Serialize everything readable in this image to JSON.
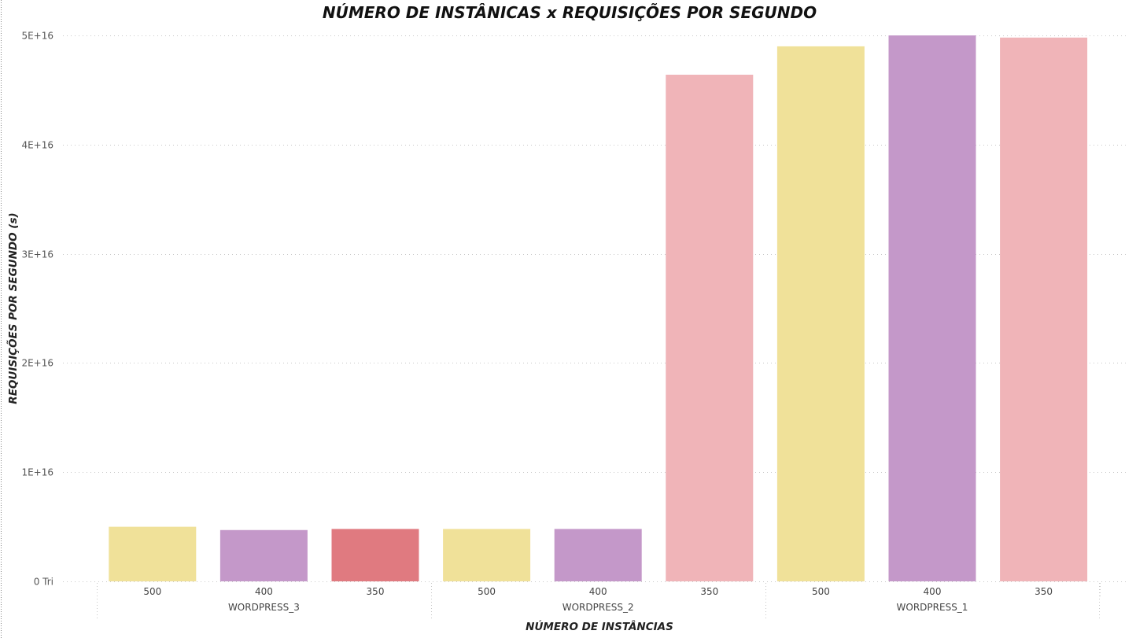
{
  "colors": {
    "bar_yellow": "#F0E199",
    "bar_purple": "#C498C9",
    "bar_red": "#E07A80",
    "bar_pink": "#F0B4B8",
    "gridline": "#C8C8C8"
  },
  "chart_data": {
    "type": "bar",
    "title": "NÚMERO DE INSTÂNICAS x REQUISIÇÕES POR SEGUNDO",
    "xlabel": "NÚMERO DE INSTÂNCIAS",
    "ylabel": "REQUISIÇÕES POR SEGUNDO (s)",
    "ylim": [
      0,
      50000000000000000
    ],
    "y_ticks": [
      {
        "value": 0,
        "label": "0 Tri"
      },
      {
        "value": 10000000000000000,
        "label": "1E+16"
      },
      {
        "value": 20000000000000000,
        "label": "2E+16"
      },
      {
        "value": 30000000000000000,
        "label": "3E+16"
      },
      {
        "value": 40000000000000000,
        "label": "4E+16"
      },
      {
        "value": 50000000000000000,
        "label": "5E+16"
      }
    ],
    "grid": true,
    "groups": [
      "WORDPRESS_3",
      "WORDPRESS_2",
      "WORDPRESS_1"
    ],
    "bars": [
      {
        "group": "WORDPRESS_3",
        "category": "500",
        "value": 5000000000000000,
        "color": "#F0E199"
      },
      {
        "group": "WORDPRESS_3",
        "category": "400",
        "value": 4700000000000000,
        "color": "#C498C9"
      },
      {
        "group": "WORDPRESS_3",
        "category": "350",
        "value": 4800000000000000,
        "color": "#E07A80"
      },
      {
        "group": "WORDPRESS_2",
        "category": "500",
        "value": 4800000000000000,
        "color": "#F0E199"
      },
      {
        "group": "WORDPRESS_2",
        "category": "400",
        "value": 4800000000000000,
        "color": "#C498C9"
      },
      {
        "group": "WORDPRESS_2",
        "category": "350",
        "value": 46400000000000000,
        "color": "#F0B4B8"
      },
      {
        "group": "WORDPRESS_1",
        "category": "500",
        "value": 49000000000000000,
        "color": "#F0E199"
      },
      {
        "group": "WORDPRESS_1",
        "category": "400",
        "value": 50000000000000000,
        "color": "#C498C9"
      },
      {
        "group": "WORDPRESS_1",
        "category": "350",
        "value": 49800000000000000,
        "color": "#F0B4B8"
      }
    ]
  }
}
